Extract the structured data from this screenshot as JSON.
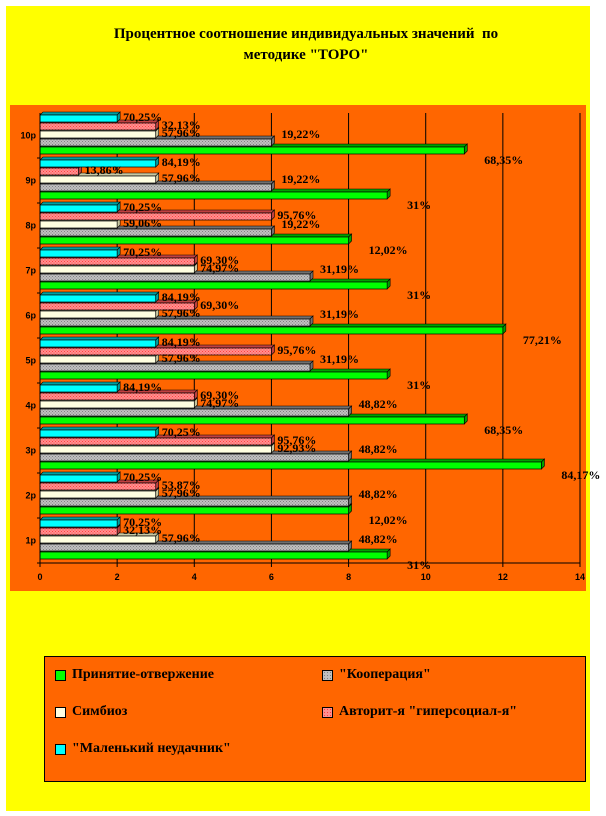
{
  "title": {
    "line1": "Процентное соотношение индивидуальных значений  по",
    "line2": "методике \"ТОРО\""
  },
  "colors": {
    "page_bg": "#ffff00",
    "panel_bg": "#ff6600",
    "series": [
      "#00ff00",
      "#c0c0c0",
      "#ffffe0",
      "#ff8080",
      "#00ffff"
    ],
    "pattern_gray": "#808080",
    "pattern_pink": "#ff4040"
  },
  "chart_data": {
    "type": "bar",
    "orientation": "horizontal",
    "categories": [
      "1р",
      "2р",
      "3р",
      "4р",
      "5р",
      "6р",
      "7р",
      "8р",
      "9р",
      "10р"
    ],
    "xlim": [
      0,
      14
    ],
    "xticks": [
      "0",
      "2",
      "4",
      "6",
      "8",
      "10",
      "12",
      "14"
    ],
    "vertical_gridlines": true,
    "series": [
      {
        "name": "Принятие-отвержение",
        "values": [
          9,
          8,
          13,
          11,
          9,
          12,
          9,
          8,
          9,
          11
        ],
        "labels": [
          "31%",
          "12,02%",
          "84,17%",
          "68,35%",
          "31%",
          "77,21%",
          "31%",
          "12,02%",
          "31%",
          "68,35%"
        ]
      },
      {
        "name": "\"Кооперация\"",
        "values": [
          8,
          8,
          8,
          8,
          7,
          7,
          7,
          6,
          6,
          6
        ],
        "labels": [
          "48,82%",
          "48,82%",
          "48,82%",
          "48,82%",
          "31,19%",
          "31,19%",
          "31,19%",
          "19,22%",
          "19,22%",
          "19,22%"
        ]
      },
      {
        "name": "Симбиоз",
        "values": [
          3,
          3,
          6,
          4,
          3,
          3,
          4,
          2,
          3,
          3
        ],
        "labels": [
          "57,96%",
          "57,96%",
          "92,93%",
          "74,97%",
          "57,96%",
          "57,96%",
          "74,97%",
          "59,06%",
          "57,96%",
          "57,96%"
        ]
      },
      {
        "name": "Авторит-я \"гиперсоциал-я\"",
        "values": [
          2,
          3,
          6,
          4,
          6,
          4,
          4,
          6,
          1,
          3
        ],
        "labels": [
          "32,13%",
          "53,87%",
          "95,76%",
          "69,30%",
          "95,76%",
          "69,30%",
          "69,30%",
          "95,76%",
          "13,86%",
          "32,13%"
        ]
      },
      {
        "name": "\"Маленький неудачник\"",
        "values": [
          2,
          2,
          3,
          2,
          3,
          3,
          2,
          2,
          3,
          2
        ],
        "labels": [
          "70,25%",
          "70,25%",
          "70,25%",
          "84,19%",
          "84,19%",
          "84,19%",
          "70,25%",
          "70,25%",
          "84,19%",
          "70,25%"
        ]
      }
    ],
    "legend_position": "bottom"
  },
  "legend": {
    "items": [
      "Принятие-отвержение",
      "\"Кооперация\"",
      "Симбиоз",
      "Авторит-я \"гиперсоциал-я\"",
      "\"Маленький неудачник\""
    ]
  }
}
